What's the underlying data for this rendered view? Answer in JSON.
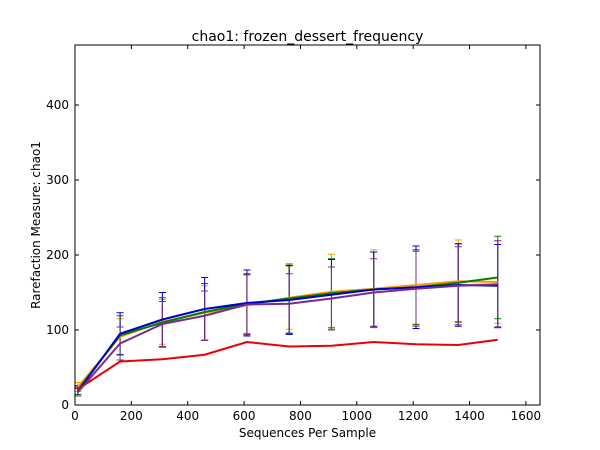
{
  "chart_data": {
    "type": "line",
    "title": "chao1: frozen_dessert_frequency",
    "xlabel": "Sequences Per Sample",
    "ylabel": "Rarefaction Measure: chao1",
    "xlim": [
      0,
      1650
    ],
    "ylim": [
      0,
      480
    ],
    "xticks": [
      0,
      200,
      400,
      600,
      800,
      1000,
      1200,
      1400,
      1600
    ],
    "yticks": [
      0,
      100,
      200,
      300,
      400
    ],
    "x": [
      10,
      160,
      310,
      460,
      610,
      760,
      910,
      1060,
      1210,
      1360,
      1500
    ],
    "grid": false,
    "legend": "none",
    "series": [
      {
        "color": "#ff9900",
        "values": [
          24,
          91,
          111,
          123,
          133,
          143,
          151,
          155,
          160,
          165,
          164
        ],
        "err": [
          6,
          24,
          30,
          36,
          40,
          42,
          50,
          52,
          52,
          55,
          55
        ]
      },
      {
        "color": "#008000",
        "values": [
          20,
          93,
          110,
          124,
          135,
          142,
          149,
          154,
          157,
          163,
          170
        ],
        "err": [
          6,
          26,
          33,
          38,
          40,
          46,
          46,
          50,
          50,
          52,
          55
        ]
      },
      {
        "color": "#0000cc",
        "values": [
          18,
          95,
          114,
          128,
          136,
          140,
          147,
          154,
          157,
          160,
          159
        ],
        "err": [
          6,
          28,
          36,
          42,
          44,
          46,
          47,
          50,
          55,
          55,
          55
        ]
      },
      {
        "color": "#ee0000",
        "values": [
          21,
          58,
          61,
          67,
          84,
          78,
          79,
          84,
          81,
          80,
          87
        ],
        "err": [
          0,
          0,
          0,
          0,
          0,
          0,
          0,
          0,
          0,
          0,
          0
        ]
      },
      {
        "color": "#7b2d84",
        "values": [
          17,
          82,
          108,
          119,
          134,
          135,
          142,
          150,
          155,
          159,
          161
        ],
        "err": [
          5,
          22,
          30,
          33,
          40,
          40,
          42,
          45,
          50,
          52,
          58
        ]
      }
    ]
  }
}
